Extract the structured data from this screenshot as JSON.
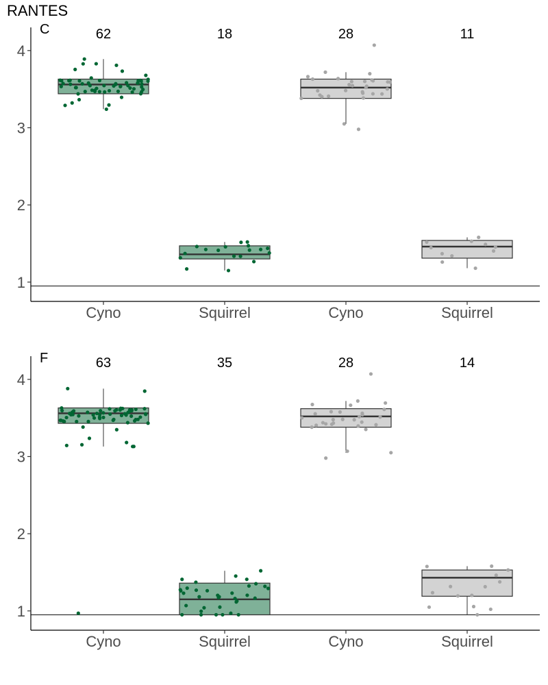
{
  "title": "RANTES",
  "colors": {
    "group_a_fill": "#7fb198",
    "group_a_point": "#006633",
    "group_b_fill": "#d3d3d3",
    "group_b_point": "#a6a6a6",
    "box_stroke": "#333333",
    "axis": "#000000"
  },
  "chart_data": [
    {
      "type": "box",
      "panel": "C",
      "categories": [
        "Cyno",
        "Squirrel",
        "Cyno",
        "Squirrel"
      ],
      "counts": [
        "62",
        "18",
        "28",
        "11"
      ],
      "yticks": [
        "1",
        "2",
        "3",
        "4"
      ],
      "ylim": [
        0.75,
        4.3
      ],
      "reference_line": 0.95,
      "boxes": [
        {
          "group": "a",
          "n_points": 62,
          "min": 3.24,
          "q1": 3.44,
          "median": 3.56,
          "q3": 3.63,
          "max": 3.89
        },
        {
          "group": "a",
          "n_points": 18,
          "min": 1.15,
          "q1": 1.3,
          "median": 1.36,
          "q3": 1.47,
          "max": 1.52
        },
        {
          "group": "b",
          "n_points": 28,
          "min": 3.05,
          "q1": 3.38,
          "median": 3.52,
          "q3": 3.63,
          "max": 3.72
        },
        {
          "group": "b",
          "n_points": 11,
          "min": 1.18,
          "q1": 1.31,
          "median": 1.46,
          "q3": 1.54,
          "max": 1.58
        }
      ],
      "outliers": [
        [],
        [],
        [
          4.07,
          2.98
        ],
        []
      ]
    },
    {
      "type": "box",
      "panel": "F",
      "categories": [
        "Cyno",
        "Squirrel",
        "Cyno",
        "Squirrel"
      ],
      "counts": [
        "63",
        "35",
        "28",
        "14"
      ],
      "yticks": [
        "1",
        "2",
        "3",
        "4"
      ],
      "ylim": [
        0.75,
        4.3
      ],
      "reference_line": 0.95,
      "boxes": [
        {
          "group": "a",
          "n_points": 63,
          "min": 3.13,
          "q1": 3.43,
          "median": 3.56,
          "q3": 3.63,
          "max": 3.88
        },
        {
          "group": "a",
          "n_points": 35,
          "min": 0.95,
          "q1": 0.95,
          "median": 1.15,
          "q3": 1.36,
          "max": 1.52
        },
        {
          "group": "b",
          "n_points": 28,
          "min": 3.05,
          "q1": 3.38,
          "median": 3.52,
          "q3": 3.62,
          "max": 3.72
        },
        {
          "group": "b",
          "n_points": 14,
          "min": 0.95,
          "q1": 1.19,
          "median": 1.43,
          "q3": 1.53,
          "max": 1.58
        }
      ],
      "outliers": [
        [
          0.97
        ],
        [],
        [
          4.07,
          2.98
        ],
        []
      ]
    }
  ]
}
